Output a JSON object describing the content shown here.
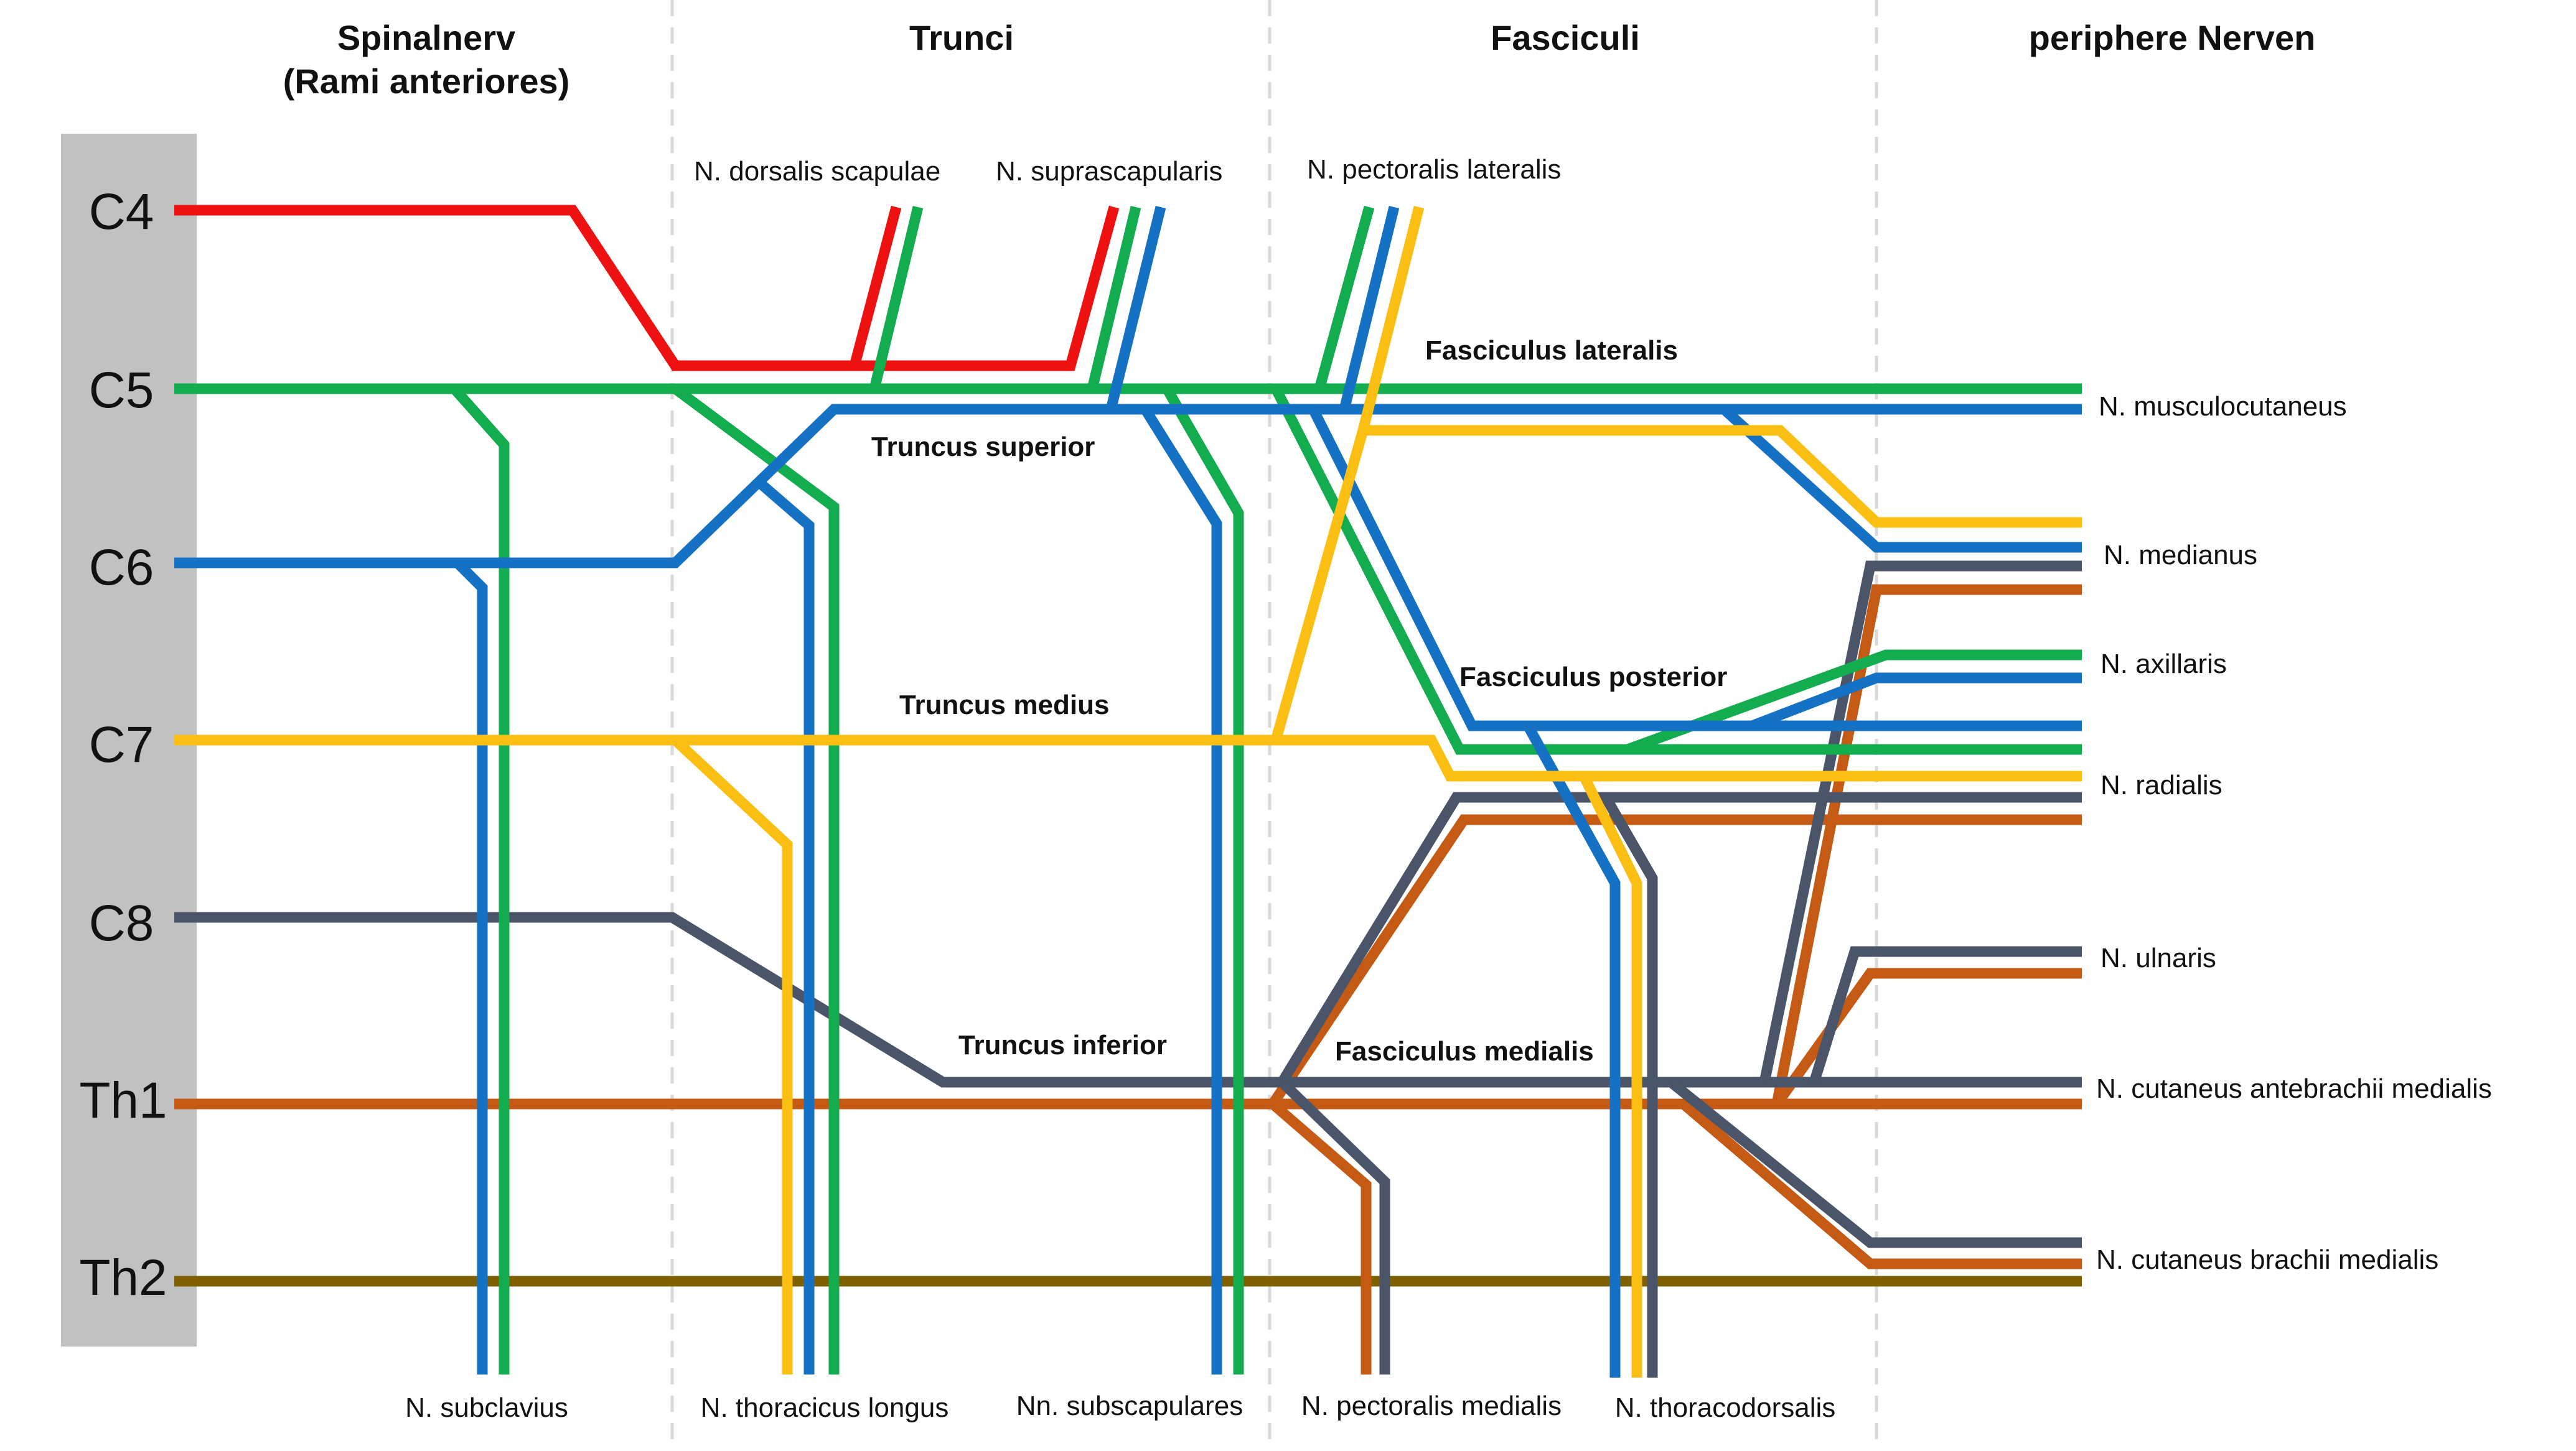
{
  "headers": {
    "spinalnerv_line1": "Spinalnerv",
    "spinalnerv_line2": "(Rami anteriores)",
    "trunci": "Trunci",
    "fasciculi": "Fasciculi",
    "periphere": "periphere Nerven"
  },
  "levels": [
    "C4",
    "C5",
    "C6",
    "C7",
    "C8",
    "Th1",
    "Th2"
  ],
  "colors": {
    "C4": "#ee1111",
    "C5": "#13ad4f",
    "C6": "#1571c4",
    "C7": "#fbbe13",
    "C8": "#4a5569",
    "Th1": "#c55a14",
    "Th2": "#7f6000",
    "level_bar": "#c1c1c1"
  },
  "trunk_labels": {
    "superior": "Truncus superior",
    "medius": "Truncus medius",
    "inferior": "Truncus inferior"
  },
  "fascicle_labels": {
    "lateralis": "Fasciculus lateralis",
    "posterior": "Fasciculus posterior",
    "medialis": "Fasciculus medialis"
  },
  "top_branches": {
    "dorsalis_scapulae": "N. dorsalis scapulae",
    "suprascapularis": "N. suprascapularis",
    "pectoralis_lateralis": "N. pectoralis lateralis"
  },
  "bottom_branches": {
    "subclavius": "N. subclavius",
    "thoracicus_longus": "N. thoracicus longus",
    "subscapulares": "Nn. subscapulares",
    "pectoralis_medialis": "N. pectoralis medialis",
    "thoracodorsalis": "N. thoracodorsalis"
  },
  "terminal_nerves": {
    "musculocutaneus": "N. musculocutaneus",
    "medianus": "N. medianus",
    "axillaris": "N. axillaris",
    "radialis": "N. radialis",
    "ulnaris": "N. ulnaris",
    "cut_antebrachii": "N. cutaneus antebrachii medialis",
    "cut_brachii": "N. cutaneus brachii medialis"
  }
}
